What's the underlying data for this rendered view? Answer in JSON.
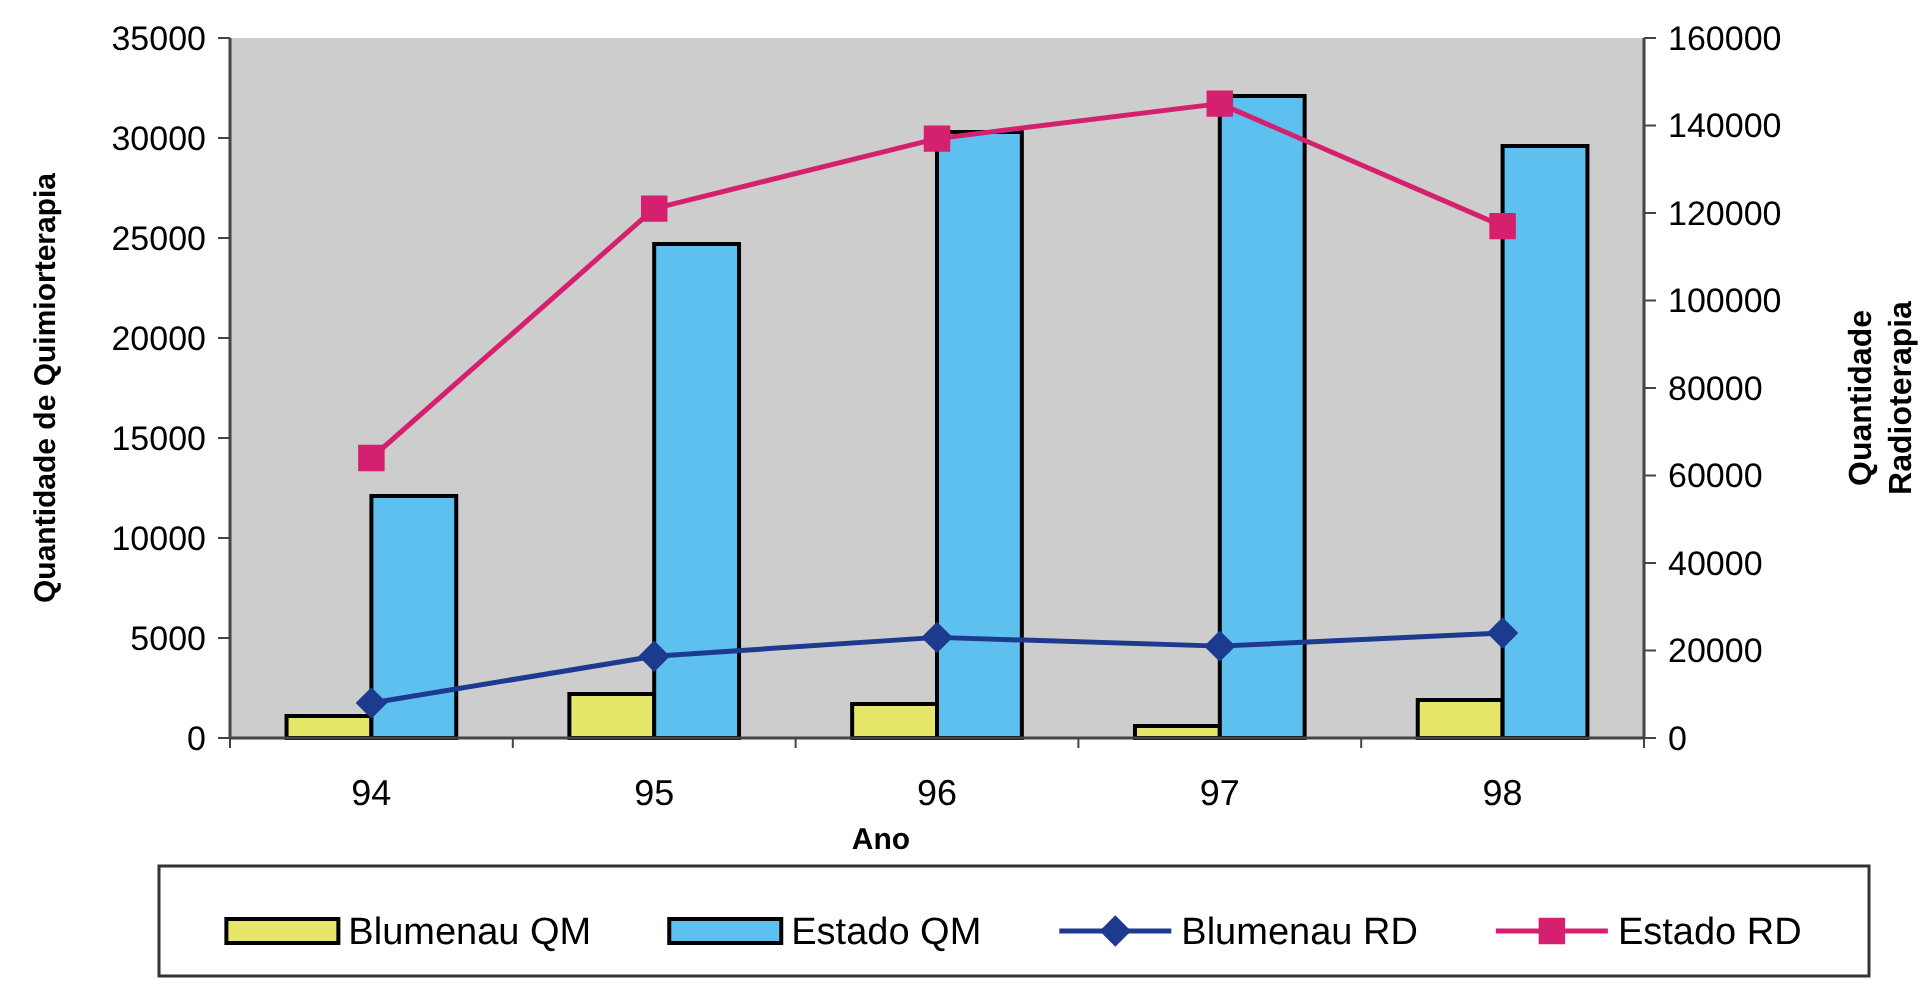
{
  "chart_data": {
    "type": "bar",
    "xlabel": "Ano",
    "ylabel": "Quantidade de Quimiorterapia",
    "y2label": "Quantidade Radioterapia",
    "categories": [
      "94",
      "95",
      "96",
      "97",
      "98"
    ],
    "series": [
      {
        "name": "Blumenau QM",
        "color": "#e6e66a",
        "values": [
          1100,
          2200,
          1700,
          600,
          1900
        ]
      },
      {
        "name": "Estado QM",
        "color": "#5ec0ee",
        "values": [
          12100,
          24700,
          30300,
          32100,
          29600
        ]
      },
      {
        "name": "Blumenau RD",
        "type": "line",
        "axis": "y2",
        "color": "#1c3a8e",
        "marker": "diamond",
        "values": [
          8000,
          18700,
          23000,
          21000,
          24000
        ]
      },
      {
        "name": "Estado RD",
        "type": "line",
        "axis": "y2",
        "color": "#d4206e",
        "marker": "square",
        "values": [
          64000,
          121000,
          137000,
          145000,
          117000
        ]
      }
    ],
    "ylim": [
      0,
      35000
    ],
    "yticks": [
      0,
      5000,
      10000,
      15000,
      20000,
      25000,
      30000,
      35000
    ],
    "y2lim": [
      0,
      160000
    ],
    "y2ticks": [
      0,
      20000,
      40000,
      60000,
      80000,
      100000,
      120000,
      140000,
      160000
    ],
    "legend": "bottom"
  }
}
